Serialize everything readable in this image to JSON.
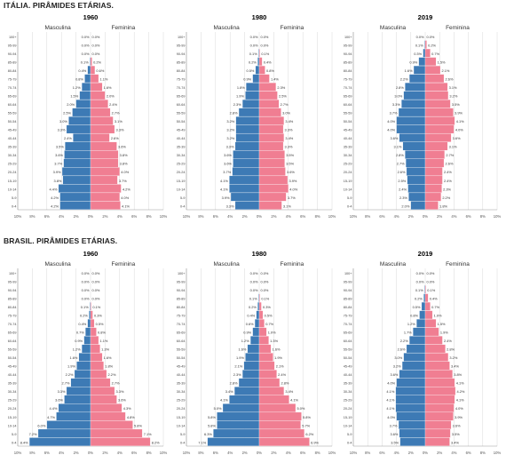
{
  "sections": [
    {
      "title": "ITÁLIA. PIRÂMIDES ETÁRIAS.",
      "charts": [
        {
          "year": "1960",
          "male_label": "Masculina",
          "female_label": "Feminina"
        },
        {
          "year": "1980",
          "male_label": "Masculina",
          "female_label": "Feminina"
        },
        {
          "year": "2019",
          "male_label": "Masculina",
          "female_label": "Feminina"
        }
      ]
    },
    {
      "title": "BRASIL. PIRÂMIDES ETÁRIAS.",
      "charts": [
        {
          "year": "1960",
          "male_label": "Masculina",
          "female_label": "Feminina"
        },
        {
          "year": "1980",
          "male_label": "Masculina",
          "female_label": "Feminina"
        },
        {
          "year": "2019",
          "male_label": "Masculina",
          "female_label": "Feminina"
        }
      ]
    }
  ],
  "colors": {
    "male": "#3d7ab5",
    "female": "#f07e92",
    "grid": "#d8d8d8",
    "axis": "#9a9a9a"
  },
  "chart_data": [
    {
      "type": "bar",
      "country": "Itália",
      "year": "1960",
      "orientation": "horizontal-population-pyramid",
      "categories": [
        "0-4",
        "5-9",
        "10-14",
        "15-19",
        "20-24",
        "25-29",
        "30-34",
        "35-39",
        "40-44",
        "45-49",
        "50-54",
        "55-59",
        "60-64",
        "65-69",
        "70-74",
        "75-79",
        "80-84",
        "85-89",
        "90-94",
        "95-99",
        "100+"
      ],
      "series": [
        {
          "name": "Masculina",
          "values": [
            4.2,
            4.2,
            4.4,
            3.8,
            3.9,
            3.7,
            3.6,
            3.5,
            2.4,
            3.3,
            3.0,
            2.5,
            2.0,
            1.5,
            1.2,
            0.8,
            0.4,
            0.1,
            0.0,
            0.0,
            0.0
          ],
          "labels": [
            "4.2%",
            "4.2%",
            "4.4%",
            "3.8%",
            "3.9%",
            "3.7%",
            "3.6%",
            "3.5%",
            "2.4%",
            "3.3%",
            "3.0%",
            "2.5%",
            "2.0%",
            "1.5%",
            "1.2%",
            "0.8%",
            "0.4%",
            "0.1%",
            "0.0%",
            "0.0%",
            "0.0%"
          ]
        },
        {
          "name": "Feminina",
          "values": [
            4.1,
            4.0,
            4.2,
            3.7,
            4.0,
            3.8,
            3.8,
            3.6,
            2.6,
            3.3,
            3.1,
            2.7,
            2.4,
            2.0,
            1.6,
            1.1,
            0.6,
            0.2,
            0.0,
            0.0,
            0.0
          ],
          "labels": [
            "4.1%",
            "4.0%",
            "4.2%",
            "3.7%",
            "4.0%",
            "3.8%",
            "3.8%",
            "3.6%",
            "2.6%",
            "3.3%",
            "3.1%",
            "2.7%",
            "2.4%",
            "2.0%",
            "1.6%",
            "1.1%",
            "0.6%",
            "0.2%",
            "0.0%",
            "0.0%",
            "0.0%"
          ]
        }
      ],
      "xticks": [
        "10%",
        "8%",
        "6%",
        "4%",
        "2%",
        "0%",
        "2%",
        "4%",
        "6%",
        "8%",
        "10%"
      ],
      "xlim": [
        -10,
        10
      ]
    },
    {
      "type": "bar",
      "country": "Itália",
      "year": "1980",
      "orientation": "horizontal-population-pyramid",
      "categories": [
        "0-4",
        "5-9",
        "10-14",
        "15-19",
        "20-24",
        "25-29",
        "30-34",
        "35-39",
        "40-44",
        "45-49",
        "50-54",
        "55-59",
        "60-64",
        "65-69",
        "70-74",
        "75-79",
        "80-84",
        "85-89",
        "90-94",
        "95-99",
        "100+"
      ],
      "series": [
        {
          "name": "Masculina",
          "values": [
            3.3,
            3.9,
            4.1,
            4.1,
            3.7,
            3.6,
            3.6,
            3.3,
            3.2,
            3.2,
            3.2,
            2.8,
            2.3,
            1.9,
            1.8,
            0.9,
            0.5,
            0.2,
            0.1,
            0.0,
            0.0
          ],
          "labels": [
            "3.3%",
            "3.9%",
            "4.1%",
            "4.1%",
            "3.7%",
            "3.6%",
            "3.6%",
            "3.3%",
            "3.2%",
            "3.2%",
            "3.2%",
            "2.8%",
            "2.3%",
            "1.9%",
            "1.8%",
            "0.9%",
            "0.5%",
            "0.2%",
            "0.1%",
            "0.0%",
            "0.0%"
          ]
        },
        {
          "name": "Feminina",
          "values": [
            3.1,
            3.7,
            4.0,
            3.9,
            3.6,
            3.5,
            3.5,
            3.3,
            3.4,
            3.3,
            3.4,
            3.0,
            2.7,
            2.5,
            2.3,
            1.4,
            0.8,
            0.4,
            0.1,
            0.0,
            0.0
          ],
          "labels": [
            "3.1%",
            "3.7%",
            "4.0%",
            "3.9%",
            "3.6%",
            "3.5%",
            "3.5%",
            "3.3%",
            "3.4%",
            "3.3%",
            "3.4%",
            "3.0%",
            "2.7%",
            "2.5%",
            "2.3%",
            "1.4%",
            "0.8%",
            "0.4%",
            "0.1%",
            "0.0%",
            "0.0%"
          ]
        }
      ],
      "xticks": [
        "10%",
        "8%",
        "6%",
        "4%",
        "2%",
        "0%",
        "2%",
        "4%",
        "6%",
        "8%",
        "10%"
      ],
      "xlim": [
        -10,
        10
      ]
    },
    {
      "type": "bar",
      "country": "Itália",
      "year": "2019",
      "orientation": "horizontal-population-pyramid",
      "categories": [
        "0-4",
        "5-9",
        "10-14",
        "15-19",
        "20-24",
        "25-29",
        "30-34",
        "35-39",
        "40-44",
        "45-49",
        "50-54",
        "55-59",
        "60-64",
        "65-69",
        "70-74",
        "75-79",
        "80-84",
        "85-89",
        "90-94",
        "95-99",
        "100+"
      ],
      "series": [
        {
          "name": "Masculina",
          "values": [
            2.0,
            2.3,
            2.4,
            2.5,
            2.6,
            2.7,
            2.8,
            3.1,
            3.6,
            4.0,
            4.0,
            3.7,
            3.3,
            3.0,
            2.8,
            2.2,
            1.6,
            0.9,
            0.3,
            0.1,
            0.0
          ],
          "labels": [
            "2.0%",
            "2.3%",
            "2.4%",
            "2.5%",
            "2.6%",
            "2.7%",
            "2.8%",
            "3.1%",
            "3.6%",
            "4.0%",
            "4.0%",
            "3.7%",
            "3.3%",
            "3.0%",
            "2.8%",
            "2.2%",
            "1.6%",
            "0.9%",
            "0.3%",
            "0.1%",
            "0.0%"
          ]
        },
        {
          "name": "Feminina",
          "values": [
            1.8,
            2.2,
            2.3,
            2.4,
            2.4,
            2.6,
            2.7,
            3.1,
            3.6,
            4.0,
            4.1,
            3.9,
            3.5,
            3.2,
            3.1,
            2.6,
            2.1,
            1.5,
            0.7,
            0.2,
            0.0
          ],
          "labels": [
            "1.8%",
            "2.2%",
            "2.3%",
            "2.4%",
            "2.4%",
            "2.6%",
            "2.7%",
            "3.1%",
            "3.6%",
            "4.0%",
            "4.1%",
            "3.9%",
            "3.5%",
            "3.2%",
            "3.1%",
            "2.6%",
            "2.1%",
            "1.5%",
            "0.7%",
            "0.2%",
            "0.0%"
          ]
        }
      ],
      "xticks": [
        "10%",
        "8%",
        "6%",
        "4%",
        "2%",
        "0%",
        "2%",
        "4%",
        "6%",
        "8%",
        "10%"
      ],
      "xlim": [
        -10,
        10
      ]
    },
    {
      "type": "bar",
      "country": "Brasil",
      "year": "1960",
      "orientation": "horizontal-population-pyramid",
      "categories": [
        "0-4",
        "5-9",
        "10-14",
        "15-19",
        "20-24",
        "25-29",
        "30-34",
        "35-39",
        "40-44",
        "45-49",
        "50-54",
        "55-59",
        "60-64",
        "65-69",
        "70-74",
        "75-79",
        "80-84",
        "85-89",
        "90-94",
        "95-99",
        "100+"
      ],
      "series": [
        {
          "name": "Masculina",
          "values": [
            8.4,
            7.2,
            6.0,
            4.7,
            4.4,
            3.6,
            3.3,
            2.7,
            2.2,
            1.9,
            1.6,
            1.2,
            0.9,
            0.7,
            0.4,
            0.2,
            0.1,
            0.0,
            0.0,
            0.0,
            0.0
          ],
          "labels": [
            "8.4%",
            "7.2%",
            "6.0%",
            "4.7%",
            "4.4%",
            "3.6%",
            "3.3%",
            "2.7%",
            "2.2%",
            "1.9%",
            "1.6%",
            "1.2%",
            "0.9%",
            "0.7%",
            "0.4%",
            "0.2%",
            "0.1%",
            "0.0%",
            "0.0%",
            "0.0%",
            "0.0%"
          ]
        },
        {
          "name": "Feminina",
          "values": [
            8.2,
            7.1,
            5.8,
            4.8,
            4.3,
            3.6,
            3.3,
            2.7,
            2.2,
            1.8,
            1.6,
            1.3,
            1.1,
            0.8,
            0.5,
            0.3,
            0.1,
            0.0,
            0.0,
            0.0,
            0.0
          ],
          "labels": [
            "8.2%",
            "7.1%",
            "5.8%",
            "4.8%",
            "4.3%",
            "3.6%",
            "3.3%",
            "2.7%",
            "2.2%",
            "1.8%",
            "1.6%",
            "1.3%",
            "1.1%",
            "0.8%",
            "0.5%",
            "0.3%",
            "0.1%",
            "0.0%",
            "0.0%",
            "0.0%",
            "0.0%"
          ]
        }
      ],
      "xticks": [
        "10%",
        "8%",
        "6%",
        "4%",
        "2%",
        "0%",
        "2%",
        "4%",
        "6%",
        "8%",
        "10%"
      ],
      "xlim": [
        -10,
        10
      ]
    },
    {
      "type": "bar",
      "country": "Brasil",
      "year": "1980",
      "orientation": "horizontal-population-pyramid",
      "categories": [
        "0-4",
        "5-9",
        "10-14",
        "15-19",
        "20-24",
        "25-29",
        "30-34",
        "35-39",
        "40-44",
        "45-49",
        "50-54",
        "55-59",
        "60-64",
        "65-69",
        "70-74",
        "75-79",
        "80-84",
        "85-89",
        "90-94",
        "95-99",
        "100+"
      ],
      "series": [
        {
          "name": "Masculina",
          "values": [
            7.1,
            6.3,
            5.8,
            5.8,
            5.0,
            4.1,
            3.4,
            2.8,
            2.3,
            2.1,
            1.9,
            1.6,
            1.2,
            0.9,
            0.6,
            0.4,
            0.2,
            0.1,
            0.0,
            0.0,
            0.0
          ],
          "labels": [
            "7.1%",
            "6.3%",
            "5.8%",
            "5.8%",
            "5.0%",
            "4.1%",
            "3.4%",
            "2.8%",
            "2.3%",
            "2.1%",
            "1.9%",
            "1.6%",
            "1.2%",
            "0.9%",
            "0.6%",
            "0.4%",
            "0.2%",
            "0.1%",
            "0.0%",
            "0.0%",
            "0.0%"
          ]
        },
        {
          "name": "Feminina",
          "values": [
            6.9,
            6.2,
            5.7,
            5.8,
            5.0,
            4.1,
            3.4,
            2.8,
            2.4,
            2.1,
            1.9,
            1.6,
            1.3,
            1.0,
            0.7,
            0.5,
            0.3,
            0.1,
            0.0,
            0.0,
            0.0
          ],
          "labels": [
            "6.9%",
            "6.2%",
            "5.7%",
            "5.8%",
            "5.0%",
            "4.1%",
            "3.4%",
            "2.8%",
            "2.4%",
            "2.1%",
            "1.9%",
            "1.6%",
            "1.3%",
            "1.0%",
            "0.7%",
            "0.5%",
            "0.3%",
            "0.1%",
            "0.0%",
            "0.0%",
            "0.0%"
          ]
        }
      ],
      "xticks": [
        "10%",
        "8%",
        "6%",
        "4%",
        "2%",
        "0%",
        "2%",
        "4%",
        "6%",
        "8%",
        "10%"
      ],
      "xlim": [
        -10,
        10
      ]
    },
    {
      "type": "bar",
      "country": "Brasil",
      "year": "2019",
      "orientation": "horizontal-population-pyramid",
      "categories": [
        "0-4",
        "5-9",
        "10-14",
        "15-19",
        "20-24",
        "25-29",
        "30-34",
        "35-39",
        "40-44",
        "45-49",
        "50-54",
        "55-59",
        "60-64",
        "65-69",
        "70-74",
        "75-79",
        "80-84",
        "85-89",
        "90-94",
        "95-99",
        "100+"
      ],
      "series": [
        {
          "name": "Masculina",
          "values": [
            3.5,
            3.6,
            3.7,
            4.0,
            4.1,
            4.1,
            4.1,
            4.0,
            3.6,
            3.2,
            3.0,
            2.6,
            2.2,
            1.7,
            1.2,
            0.8,
            0.5,
            0.2,
            0.1,
            0.0,
            0.0
          ],
          "labels": [
            "3.5%",
            "3.6%",
            "3.7%",
            "4.0%",
            "4.1%",
            "4.1%",
            "4.1%",
            "4.0%",
            "3.6%",
            "3.2%",
            "3.0%",
            "2.6%",
            "2.2%",
            "1.7%",
            "1.2%",
            "0.8%",
            "0.5%",
            "0.2%",
            "0.1%",
            "0.0%",
            "0.0%"
          ]
        },
        {
          "name": "Feminina",
          "values": [
            3.4,
            3.5,
            3.6,
            3.9,
            4.0,
            4.1,
            4.2,
            4.1,
            3.8,
            3.4,
            3.2,
            2.8,
            2.4,
            1.9,
            1.5,
            1.0,
            0.7,
            0.4,
            0.1,
            0.0,
            0.0
          ],
          "labels": [
            "3.4%",
            "3.5%",
            "3.6%",
            "3.9%",
            "4.0%",
            "4.1%",
            "4.2%",
            "4.1%",
            "3.8%",
            "3.4%",
            "3.2%",
            "2.8%",
            "2.4%",
            "1.9%",
            "1.5%",
            "1.0%",
            "0.7%",
            "0.4%",
            "0.1%",
            "0.0%",
            "0.0%"
          ]
        }
      ],
      "xticks": [
        "10%",
        "8%",
        "6%",
        "4%",
        "2%",
        "0%",
        "2%",
        "4%",
        "6%",
        "8%",
        "10%"
      ],
      "xlim": [
        -10,
        10
      ]
    }
  ]
}
